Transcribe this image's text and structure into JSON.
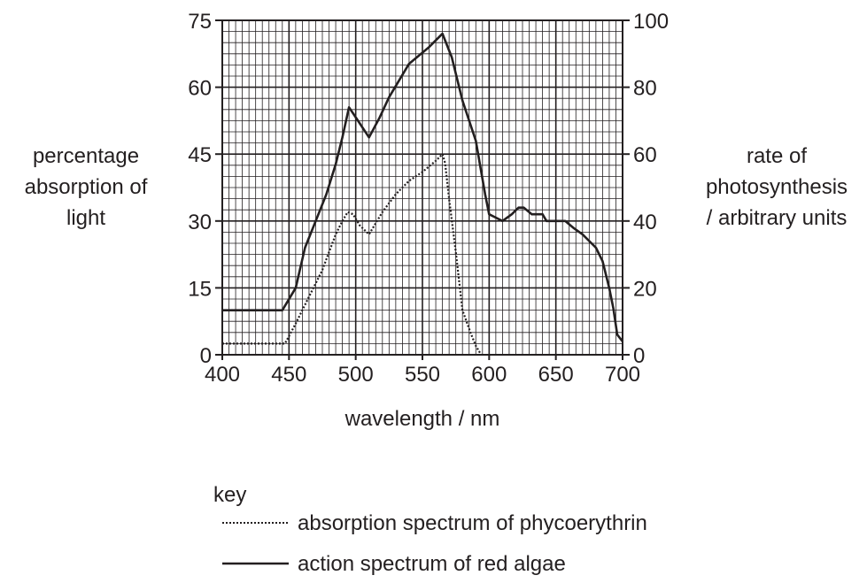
{
  "chart_data": {
    "type": "line",
    "xlabel": "wavelength / nm",
    "ylabel_left": [
      "percentage",
      "absorption of",
      "light"
    ],
    "ylabel_right": [
      "rate of",
      "photosynthesis",
      "/ arbitrary units"
    ],
    "xlim": [
      400,
      700
    ],
    "ylim_left": [
      0,
      75
    ],
    "ylim_right": [
      0,
      100
    ],
    "x_ticks": [
      400,
      450,
      500,
      550,
      600,
      650,
      700
    ],
    "y_left_ticks": [
      0,
      15,
      30,
      45,
      60,
      75
    ],
    "y_right_ticks": [
      0,
      20,
      40,
      60,
      80,
      100
    ],
    "grid": true,
    "grid_minor_x": 5,
    "grid_minor_y": 2.5,
    "legend_title": "key",
    "series": [
      {
        "name": "absorption spectrum of phycoerythrin",
        "axis": "left",
        "style": "dotted",
        "points": [
          [
            400,
            2.5
          ],
          [
            447,
            2.5
          ],
          [
            455,
            7
          ],
          [
            465,
            13
          ],
          [
            475,
            19
          ],
          [
            480,
            23
          ],
          [
            485,
            27
          ],
          [
            490,
            30
          ],
          [
            494,
            32
          ],
          [
            498,
            31.5
          ],
          [
            503,
            29
          ],
          [
            510,
            27
          ],
          [
            520,
            32
          ],
          [
            530,
            36
          ],
          [
            540,
            39
          ],
          [
            550,
            41
          ],
          [
            560,
            43.5
          ],
          [
            565,
            45
          ],
          [
            567,
            43
          ],
          [
            570,
            35
          ],
          [
            575,
            23
          ],
          [
            580,
            10
          ],
          [
            586,
            5
          ],
          [
            590,
            2
          ],
          [
            594,
            0
          ]
        ]
      },
      {
        "name": "action spectrum of red algae",
        "axis": "right",
        "style": "solid",
        "points": [
          [
            400,
            13.3
          ],
          [
            445,
            13.3
          ],
          [
            455,
            20
          ],
          [
            462,
            32
          ],
          [
            470,
            40
          ],
          [
            478,
            48
          ],
          [
            485,
            57
          ],
          [
            490,
            65
          ],
          [
            495,
            74
          ],
          [
            500,
            71
          ],
          [
            510,
            65
          ],
          [
            518,
            71
          ],
          [
            525,
            77
          ],
          [
            540,
            87
          ],
          [
            555,
            92
          ],
          [
            565,
            96
          ],
          [
            572,
            89
          ],
          [
            580,
            76
          ],
          [
            590,
            64
          ],
          [
            597,
            48
          ],
          [
            600,
            42
          ],
          [
            605,
            41
          ],
          [
            610,
            40
          ],
          [
            617,
            42
          ],
          [
            622,
            44
          ],
          [
            626,
            44
          ],
          [
            632,
            42
          ],
          [
            640,
            42
          ],
          [
            643,
            40
          ],
          [
            657,
            40
          ],
          [
            663,
            38
          ],
          [
            670,
            36
          ],
          [
            680,
            32
          ],
          [
            685,
            28
          ],
          [
            690,
            20
          ],
          [
            693,
            14
          ],
          [
            696,
            6
          ],
          [
            700,
            4
          ]
        ]
      }
    ]
  }
}
